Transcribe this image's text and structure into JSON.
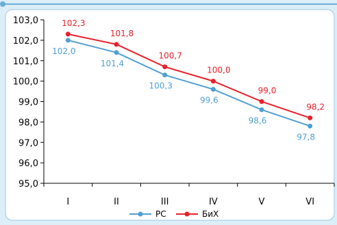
{
  "chart_data": {
    "type": "line",
    "categories": [
      "I",
      "II",
      "III",
      "IV",
      "V",
      "VI"
    ],
    "ylim": [
      95.0,
      103.0
    ],
    "yticks": [
      "95,0",
      "96,0",
      "97,0",
      "98,0",
      "99,0",
      "100,0",
      "101,0",
      "102,0",
      "103,0"
    ],
    "grid": false,
    "legend_position": "bottom",
    "series": [
      {
        "name": "РС",
        "color": "#4f9fd2",
        "values": [
          102.0,
          101.4,
          100.3,
          99.6,
          98.6,
          97.8
        ],
        "labels": [
          "102,0",
          "101,4",
          "100,3",
          "99,6",
          "98,6",
          "97,8"
        ]
      },
      {
        "name": "БиХ",
        "color": "#e8202a",
        "values": [
          102.3,
          101.8,
          100.7,
          100.0,
          99.0,
          98.2
        ],
        "labels": [
          "102,3",
          "101,8",
          "100,7",
          "100,0",
          "99,0",
          "98,2"
        ]
      }
    ]
  }
}
